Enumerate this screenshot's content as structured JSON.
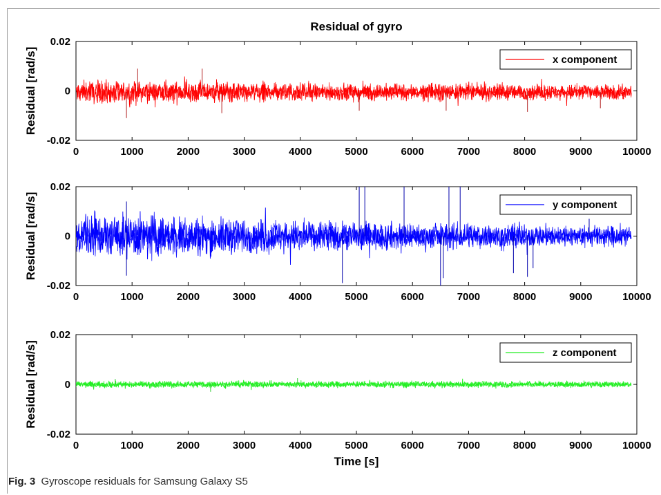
{
  "figure": {
    "title": "Residual of gyro",
    "caption_label": "Fig. 3",
    "caption_text": "Gyroscope residuals for Samsung Galaxy S5",
    "xlabel": "Time [s]"
  },
  "chart_data": [
    {
      "type": "line",
      "title": "Residual of gyro",
      "xlabel": "",
      "ylabel": "Residual [rad/s]",
      "xlim": [
        0,
        10000
      ],
      "ylim": [
        -0.02,
        0.02
      ],
      "x_ticks": [
        "0",
        "1000",
        "2000",
        "3000",
        "4000",
        "5000",
        "6000",
        "7000",
        "8000",
        "9000",
        "10000"
      ],
      "y_ticks": [
        "-0.02",
        "0",
        "0.02"
      ],
      "legend_position": "top-right",
      "series": [
        {
          "name": "x component",
          "color": "#ff0000",
          "spike_color": "#b22222",
          "x_range": [
            0,
            9900
          ],
          "baseline": -0.0005,
          "noise_amplitude": 0.0032,
          "amplitude_profile": {
            "x": [
              0,
              2500,
              5000,
              7500,
              9900
            ],
            "value": [
              0.004,
              0.0036,
              0.003,
              0.0028,
              0.0026
            ]
          },
          "peaks": [
            {
              "x": 900,
              "y": -0.011
            },
            {
              "x": 1100,
              "y": 0.009
            },
            {
              "x": 2250,
              "y": 0.009
            },
            {
              "x": 2600,
              "y": -0.009
            },
            {
              "x": 5050,
              "y": -0.008
            },
            {
              "x": 6600,
              "y": -0.008
            },
            {
              "x": 8050,
              "y": -0.0085
            },
            {
              "x": 9350,
              "y": -0.007
            }
          ]
        }
      ]
    },
    {
      "type": "line",
      "xlabel": "",
      "ylabel": "Residual [rad/s]",
      "xlim": [
        0,
        10000
      ],
      "ylim": [
        -0.02,
        0.02
      ],
      "x_ticks": [
        "0",
        "1000",
        "2000",
        "3000",
        "4000",
        "5000",
        "6000",
        "7000",
        "8000",
        "9000",
        "10000"
      ],
      "y_ticks": [
        "-0.02",
        "0",
        "0.02"
      ],
      "legend_position": "top-right",
      "series": [
        {
          "name": "y component",
          "color": "#0000ff",
          "spike_color": "#0000aa",
          "x_range": [
            0,
            9900
          ],
          "baseline": 0,
          "noise_amplitude": 0.006,
          "amplitude_profile": {
            "x": [
              0,
              1000,
              3000,
              5000,
              7000,
              9900
            ],
            "value": [
              0.0075,
              0.0075,
              0.006,
              0.0052,
              0.0042,
              0.0035
            ]
          },
          "peaks": [
            {
              "x": 900,
              "y": 0.014
            },
            {
              "x": 900,
              "y": -0.016
            },
            {
              "x": 4750,
              "y": -0.019
            },
            {
              "x": 5050,
              "y": 0.02
            },
            {
              "x": 5150,
              "y": 0.02
            },
            {
              "x": 5850,
              "y": 0.02
            },
            {
              "x": 6500,
              "y": -0.02
            },
            {
              "x": 6650,
              "y": 0.02
            },
            {
              "x": 6850,
              "y": 0.02
            },
            {
              "x": 6550,
              "y": -0.017
            },
            {
              "x": 7800,
              "y": -0.015
            },
            {
              "x": 8050,
              "y": -0.0165
            },
            {
              "x": 8150,
              "y": -0.013
            },
            {
              "x": 9150,
              "y": 0.007
            }
          ]
        }
      ]
    },
    {
      "type": "line",
      "xlabel": "Time [s]",
      "ylabel": "Residual [rad/s]",
      "xlim": [
        0,
        10000
      ],
      "ylim": [
        -0.02,
        0.02
      ],
      "x_ticks": [
        "0",
        "1000",
        "2000",
        "3000",
        "4000",
        "5000",
        "6000",
        "7000",
        "8000",
        "9000",
        "10000"
      ],
      "y_ticks": [
        "-0.02",
        "0",
        "0.02"
      ],
      "legend_position": "top-right",
      "series": [
        {
          "name": "z component",
          "color": "#22ee22",
          "spike_color": "#33cc33",
          "x_range": [
            0,
            9900
          ],
          "baseline": 0,
          "noise_amplitude": 0.0012,
          "amplitude_profile": {
            "x": [
              0,
              9900
            ],
            "value": [
              0.0012,
              0.0011
            ]
          },
          "peaks": [
            {
              "x": 2400,
              "y": -0.003
            },
            {
              "x": 3950,
              "y": 0.0025
            },
            {
              "x": 700,
              "y": 0.0022
            }
          ]
        }
      ]
    }
  ]
}
